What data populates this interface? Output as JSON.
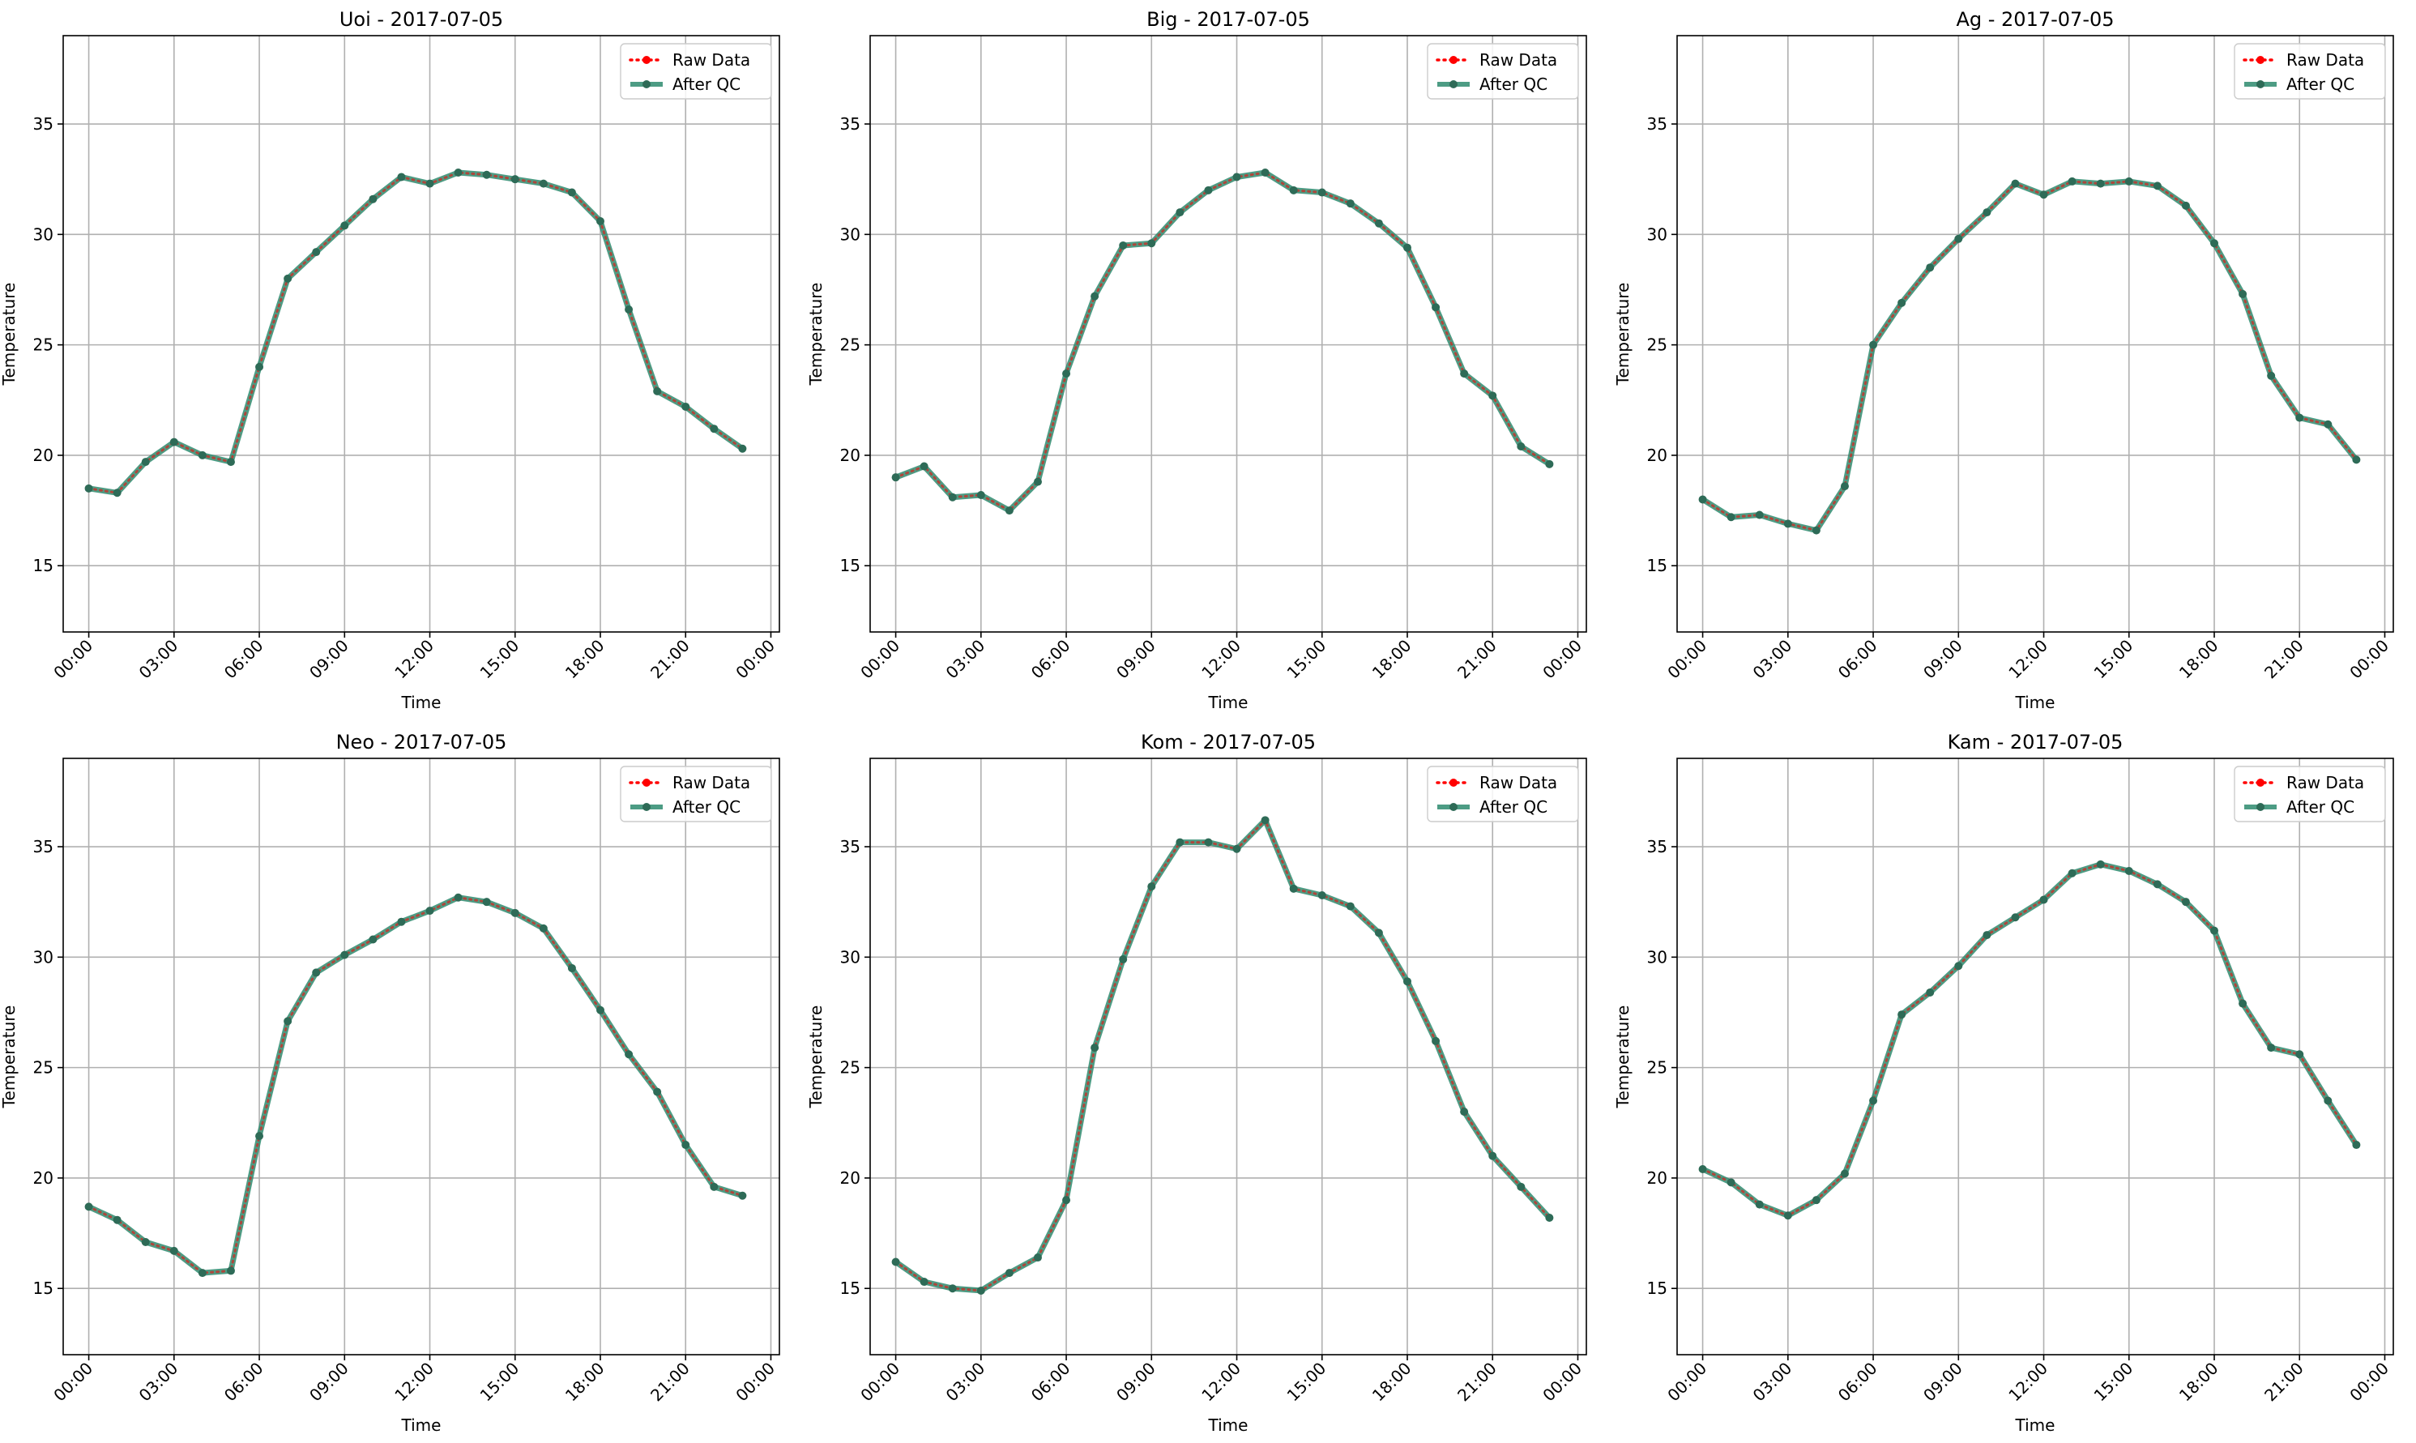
{
  "chart_data": [
    {
      "type": "line",
      "title": "Uoi - 2017-07-05",
      "xlabel": "Time",
      "ylabel": "Temperature",
      "ylim": [
        12,
        39
      ],
      "yticks": [
        15,
        20,
        25,
        30,
        35
      ],
      "xlim_hours": [
        -0.9,
        24.3
      ],
      "xticks": [
        "00:00",
        "03:00",
        "06:00",
        "09:00",
        "12:00",
        "15:00",
        "18:00",
        "21:00",
        "00:00"
      ],
      "grid": true,
      "legend_position": "top-right",
      "x_hours": [
        0,
        1,
        2,
        3,
        4,
        5,
        6,
        7,
        8,
        9,
        10,
        11,
        12,
        13,
        14,
        15,
        16,
        17,
        18,
        19,
        20,
        21,
        22,
        23
      ],
      "series": [
        {
          "name": "Raw Data",
          "values": [
            18.5,
            18.3,
            19.7,
            20.6,
            20.0,
            19.7,
            24.0,
            28.0,
            29.2,
            30.4,
            31.6,
            32.6,
            32.3,
            32.8,
            32.7,
            32.5,
            32.3,
            31.9,
            30.6,
            26.6,
            22.9,
            22.2,
            21.2,
            20.3
          ]
        },
        {
          "name": "After QC",
          "values": [
            18.5,
            18.3,
            19.7,
            20.6,
            20.0,
            19.7,
            24.0,
            28.0,
            29.2,
            30.4,
            31.6,
            32.6,
            32.3,
            32.8,
            32.7,
            32.5,
            32.3,
            31.9,
            30.6,
            26.6,
            22.9,
            22.2,
            21.2,
            20.3
          ]
        }
      ]
    },
    {
      "type": "line",
      "title": "Big - 2017-07-05",
      "xlabel": "Time",
      "ylabel": "Temperature",
      "ylim": [
        12,
        39
      ],
      "yticks": [
        15,
        20,
        25,
        30,
        35
      ],
      "xlim_hours": [
        -0.9,
        24.3
      ],
      "xticks": [
        "00:00",
        "03:00",
        "06:00",
        "09:00",
        "12:00",
        "15:00",
        "18:00",
        "21:00",
        "00:00"
      ],
      "grid": true,
      "legend_position": "top-right",
      "x_hours": [
        0,
        1,
        2,
        3,
        4,
        5,
        6,
        7,
        8,
        9,
        10,
        11,
        12,
        13,
        14,
        15,
        16,
        17,
        18,
        19,
        20,
        21,
        22,
        23
      ],
      "series": [
        {
          "name": "Raw Data",
          "values": [
            19.0,
            19.5,
            18.1,
            18.2,
            17.5,
            18.8,
            23.7,
            27.2,
            29.5,
            29.6,
            31.0,
            32.0,
            32.6,
            32.8,
            32.0,
            31.9,
            31.4,
            30.5,
            29.4,
            26.7,
            23.7,
            22.7,
            20.4,
            19.6
          ]
        },
        {
          "name": "After QC",
          "values": [
            19.0,
            19.5,
            18.1,
            18.2,
            17.5,
            18.8,
            23.7,
            27.2,
            29.5,
            29.6,
            31.0,
            32.0,
            32.6,
            32.8,
            32.0,
            31.9,
            31.4,
            30.5,
            29.4,
            26.7,
            23.7,
            22.7,
            20.4,
            19.6
          ]
        }
      ]
    },
    {
      "type": "line",
      "title": "Ag - 2017-07-05",
      "xlabel": "Time",
      "ylabel": "Temperature",
      "ylim": [
        12,
        39
      ],
      "yticks": [
        15,
        20,
        25,
        30,
        35
      ],
      "xlim_hours": [
        -0.9,
        24.3
      ],
      "xticks": [
        "00:00",
        "03:00",
        "06:00",
        "09:00",
        "12:00",
        "15:00",
        "18:00",
        "21:00",
        "00:00"
      ],
      "grid": true,
      "legend_position": "top-right",
      "x_hours": [
        0,
        1,
        2,
        3,
        4,
        5,
        6,
        7,
        8,
        9,
        10,
        11,
        12,
        13,
        14,
        15,
        16,
        17,
        18,
        19,
        20,
        21,
        22,
        23
      ],
      "series": [
        {
          "name": "Raw Data",
          "values": [
            18.0,
            17.2,
            17.3,
            16.9,
            16.6,
            18.6,
            25.0,
            26.9,
            28.5,
            29.8,
            31.0,
            32.3,
            31.8,
            32.4,
            32.3,
            32.4,
            32.2,
            31.3,
            29.6,
            27.3,
            23.6,
            21.7,
            21.4,
            19.8
          ]
        },
        {
          "name": "After QC",
          "values": [
            18.0,
            17.2,
            17.3,
            16.9,
            16.6,
            18.6,
            25.0,
            26.9,
            28.5,
            29.8,
            31.0,
            32.3,
            31.8,
            32.4,
            32.3,
            32.4,
            32.2,
            31.3,
            29.6,
            27.3,
            23.6,
            21.7,
            21.4,
            19.8
          ]
        }
      ]
    },
    {
      "type": "line",
      "title": "Neo - 2017-07-05",
      "xlabel": "Time",
      "ylabel": "Temperature",
      "ylim": [
        12,
        39
      ],
      "yticks": [
        15,
        20,
        25,
        30,
        35
      ],
      "xlim_hours": [
        -0.9,
        24.3
      ],
      "xticks": [
        "00:00",
        "03:00",
        "06:00",
        "09:00",
        "12:00",
        "15:00",
        "18:00",
        "21:00",
        "00:00"
      ],
      "grid": true,
      "legend_position": "top-right",
      "x_hours": [
        0,
        1,
        2,
        3,
        4,
        5,
        6,
        7,
        8,
        9,
        10,
        11,
        12,
        13,
        14,
        15,
        16,
        17,
        18,
        19,
        20,
        21,
        22,
        23
      ],
      "series": [
        {
          "name": "Raw Data",
          "values": [
            18.7,
            18.1,
            17.1,
            16.7,
            15.7,
            15.8,
            21.9,
            27.1,
            29.3,
            30.1,
            30.8,
            31.6,
            32.1,
            32.7,
            32.5,
            32.0,
            31.3,
            29.5,
            27.6,
            25.6,
            23.9,
            21.5,
            19.6,
            19.2
          ]
        },
        {
          "name": "After QC",
          "values": [
            18.7,
            18.1,
            17.1,
            16.7,
            15.7,
            15.8,
            21.9,
            27.1,
            29.3,
            30.1,
            30.8,
            31.6,
            32.1,
            32.7,
            32.5,
            32.0,
            31.3,
            29.5,
            27.6,
            25.6,
            23.9,
            21.5,
            19.6,
            19.2
          ]
        }
      ]
    },
    {
      "type": "line",
      "title": "Kom - 2017-07-05",
      "xlabel": "Time",
      "ylabel": "Temperature",
      "ylim": [
        12,
        39
      ],
      "yticks": [
        15,
        20,
        25,
        30,
        35
      ],
      "xlim_hours": [
        -0.9,
        24.3
      ],
      "xticks": [
        "00:00",
        "03:00",
        "06:00",
        "09:00",
        "12:00",
        "15:00",
        "18:00",
        "21:00",
        "00:00"
      ],
      "grid": true,
      "legend_position": "top-right",
      "x_hours": [
        0,
        1,
        2,
        3,
        4,
        5,
        6,
        7,
        8,
        9,
        10,
        11,
        12,
        13,
        14,
        15,
        16,
        17,
        18,
        19,
        20,
        21,
        22,
        23
      ],
      "series": [
        {
          "name": "Raw Data",
          "values": [
            16.2,
            15.3,
            15.0,
            14.9,
            15.7,
            16.4,
            19.0,
            25.9,
            29.9,
            33.2,
            35.2,
            35.2,
            34.9,
            36.2,
            33.1,
            32.8,
            32.3,
            31.1,
            28.9,
            26.2,
            23.0,
            21.0,
            19.6,
            18.2
          ]
        },
        {
          "name": "After QC",
          "values": [
            16.2,
            15.3,
            15.0,
            14.9,
            15.7,
            16.4,
            19.0,
            25.9,
            29.9,
            33.2,
            35.2,
            35.2,
            34.9,
            36.2,
            33.1,
            32.8,
            32.3,
            31.1,
            28.9,
            26.2,
            23.0,
            21.0,
            19.6,
            18.2
          ]
        }
      ]
    },
    {
      "type": "line",
      "title": "Kam - 2017-07-05",
      "xlabel": "Time",
      "ylabel": "Temperature",
      "ylim": [
        12,
        39
      ],
      "yticks": [
        15,
        20,
        25,
        30,
        35
      ],
      "xlim_hours": [
        -0.9,
        24.3
      ],
      "xticks": [
        "00:00",
        "03:00",
        "06:00",
        "09:00",
        "12:00",
        "15:00",
        "18:00",
        "21:00",
        "00:00"
      ],
      "grid": true,
      "legend_position": "top-right",
      "x_hours": [
        0,
        1,
        2,
        3,
        4,
        5,
        6,
        7,
        8,
        9,
        10,
        11,
        12,
        13,
        14,
        15,
        16,
        17,
        18,
        19,
        20,
        21,
        22,
        23
      ],
      "series": [
        {
          "name": "Raw Data",
          "values": [
            20.4,
            19.8,
            18.8,
            18.3,
            19.0,
            20.2,
            23.5,
            27.4,
            28.4,
            29.6,
            31.0,
            31.8,
            32.6,
            33.8,
            34.2,
            33.9,
            33.3,
            32.5,
            31.2,
            27.9,
            25.9,
            25.6,
            23.5,
            21.5
          ]
        },
        {
          "name": "After QC",
          "values": [
            20.4,
            19.8,
            18.8,
            18.3,
            19.0,
            20.2,
            23.5,
            27.4,
            28.4,
            29.6,
            31.0,
            31.8,
            32.6,
            33.8,
            34.2,
            33.9,
            33.3,
            32.5,
            31.2,
            27.9,
            25.9,
            25.6,
            23.5,
            21.5
          ]
        }
      ]
    }
  ],
  "colors": {
    "raw_data": "#ff0000",
    "after_qc": "#2e8b6e",
    "marker": "#2e6b57",
    "grid": "#b0b0b0",
    "axes": "#000000"
  }
}
